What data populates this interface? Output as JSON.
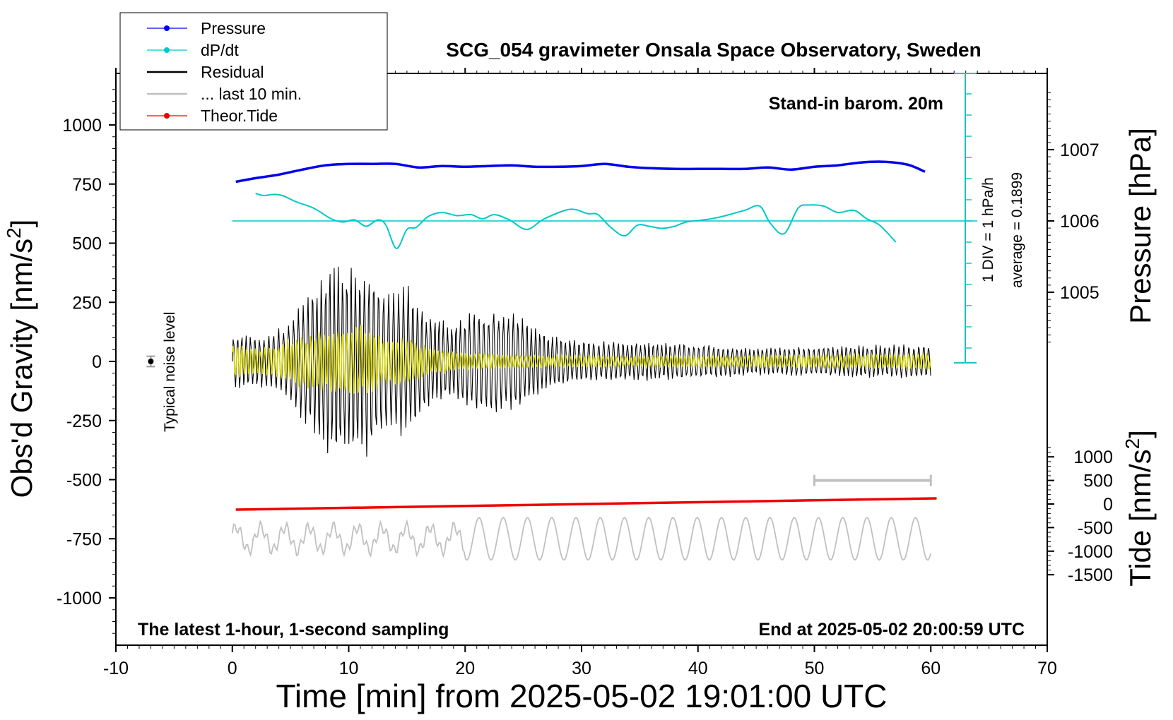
{
  "chart_data": {
    "type": "line",
    "title": "SCG_054 gravimeter Onsala Space Observatory, Sweden",
    "xlabel": "Time [min] from 2025-05-02 19:01:00 UTC",
    "xlim": [
      -10,
      70
    ],
    "xticks": [
      -10,
      0,
      10,
      20,
      30,
      40,
      50,
      60,
      70
    ],
    "left_axis": {
      "label_main": "Obs'd Gravity [nm/s",
      "label_sup": "2",
      "label_end": "]",
      "ylim": [
        -1200,
        1200
      ],
      "ticks": [
        -1000,
        -750,
        -500,
        -250,
        0,
        250,
        500,
        750,
        1000
      ]
    },
    "right_pressure_axis": {
      "label": "Pressure [hPa]",
      "ticks": [
        1005,
        1006,
        1007
      ]
    },
    "right_tide_axis": {
      "label_main": "Tide [nm/s",
      "label_sup": "2",
      "label_end": "]",
      "ticks": [
        -1500,
        -1000,
        -500,
        0,
        500,
        1000
      ]
    },
    "annotations": {
      "top_right": "Stand-in barom. 20m",
      "bottom_left": "The latest 1-hour, 1-second sampling",
      "bottom_right": "End at 2025-05-02 20:00:59 UTC",
      "dpdt_scale": "1 DIV = 1 hPa/h",
      "dpdt_average": "average = 0.1899",
      "noise": "Typical noise level"
    },
    "legend": {
      "placement": "top-left",
      "entries": [
        {
          "label": "Pressure",
          "color": "#0000ee",
          "marker": true
        },
        {
          "label": "dP/dt",
          "color": "#00c8c8",
          "marker": true
        },
        {
          "label": "Residual",
          "color": "#000000",
          "marker": false
        },
        {
          "label": "... last 10 min.",
          "color": "#c0c0c0",
          "marker": false
        },
        {
          "label": "Theor.Tide",
          "color": "#ee0000",
          "marker": true
        }
      ]
    },
    "series": [
      {
        "name": "Pressure",
        "color": "#0000ee",
        "axis": "pressure_hPa",
        "x": [
          0.3,
          2,
          4,
          6,
          8,
          10,
          12,
          14,
          16,
          18,
          20,
          22,
          24,
          26,
          28,
          30,
          32,
          34,
          36,
          38,
          40,
          42,
          44,
          46,
          48,
          50,
          52,
          54,
          56,
          58,
          59.5
        ],
        "y": [
          1006.55,
          1006.6,
          1006.65,
          1006.72,
          1006.78,
          1006.8,
          1006.8,
          1006.8,
          1006.75,
          1006.77,
          1006.76,
          1006.77,
          1006.78,
          1006.76,
          1006.76,
          1006.77,
          1006.8,
          1006.76,
          1006.74,
          1006.73,
          1006.73,
          1006.73,
          1006.73,
          1006.75,
          1006.72,
          1006.76,
          1006.78,
          1006.82,
          1006.83,
          1006.79,
          1006.69
        ]
      },
      {
        "name": "dP/dt",
        "color": "#00c8c8",
        "axis": "dpdt_hPa_per_h",
        "zero_line_hPa": 1006.0,
        "x": [
          2,
          2.7,
          3.5,
          4.3,
          5.5,
          7,
          8.5,
          9.5,
          10.5,
          11.5,
          12.5,
          13.2,
          14.1,
          15,
          15.8,
          16.8,
          18,
          19.3,
          20.5,
          21.5,
          22.5,
          23.8,
          25.3,
          26.8,
          29,
          30.5,
          31.4,
          32.5,
          33.7,
          34.8,
          35.8,
          36.9,
          38,
          39,
          40.5,
          42,
          44,
          45.3,
          46.2,
          47.4,
          48.6,
          49.5,
          50.8,
          52,
          53.4,
          54.5,
          55.6,
          57
        ],
        "y": [
          1.3,
          1.2,
          1.25,
          1.2,
          0.9,
          0.6,
          0.1,
          -0.05,
          0.05,
          -0.25,
          0.05,
          -0.2,
          -1.3,
          -0.4,
          -0.3,
          0.2,
          0.4,
          0.25,
          0.3,
          0.1,
          0.3,
          0.05,
          -0.4,
          0.1,
          0.55,
          0.35,
          0.3,
          -0.3,
          -0.7,
          -0.2,
          -0.25,
          -0.35,
          -0.25,
          -0.05,
          0.05,
          0.2,
          0.5,
          0.7,
          -0.1,
          -0.6,
          0.6,
          0.75,
          0.7,
          0.4,
          0.5,
          0.1,
          -0.2,
          -1.0
        ]
      },
      {
        "name": "Residual",
        "color": "#000000",
        "axis": "gravity_nm_s2",
        "envelope_x": [
          0,
          3,
          5,
          7,
          8.7,
          10,
          11.5,
          13,
          15,
          17,
          19,
          21,
          23,
          25,
          27,
          30,
          35,
          40,
          45,
          50,
          55,
          60
        ],
        "envelope_y": [
          120,
          110,
          180,
          330,
          450,
          420,
          440,
          300,
          330,
          200,
          170,
          220,
          220,
          200,
          130,
          90,
          90,
          75,
          60,
          65,
          75,
          70
        ]
      },
      {
        "name": "Residual (low-pass)",
        "color": "#d4d400",
        "axis": "gravity_nm_s2",
        "envelope_x": [
          0,
          3,
          5,
          7,
          9,
          11,
          13,
          15,
          17,
          20,
          25,
          30,
          40,
          50,
          60
        ],
        "envelope_y": [
          80,
          60,
          100,
          130,
          150,
          170,
          110,
          110,
          60,
          40,
          30,
          25,
          25,
          30,
          35
        ]
      },
      {
        "name": "... last 10 min.",
        "color": "#c0c0c0",
        "axis": "gravity_nm_s2",
        "center": -750,
        "amplitude": 90
      },
      {
        "name": "Theor.Tide",
        "color": "#ee0000",
        "axis": "tide_nm_s2",
        "x": [
          0.3,
          60.5
        ],
        "y": [
          -120,
          120
        ]
      }
    ],
    "noise_level": {
      "x": -7,
      "y": 0,
      "err": 22
    },
    "last10_bar": {
      "x0": 50,
      "x1": 60,
      "tide_y": 500
    }
  }
}
